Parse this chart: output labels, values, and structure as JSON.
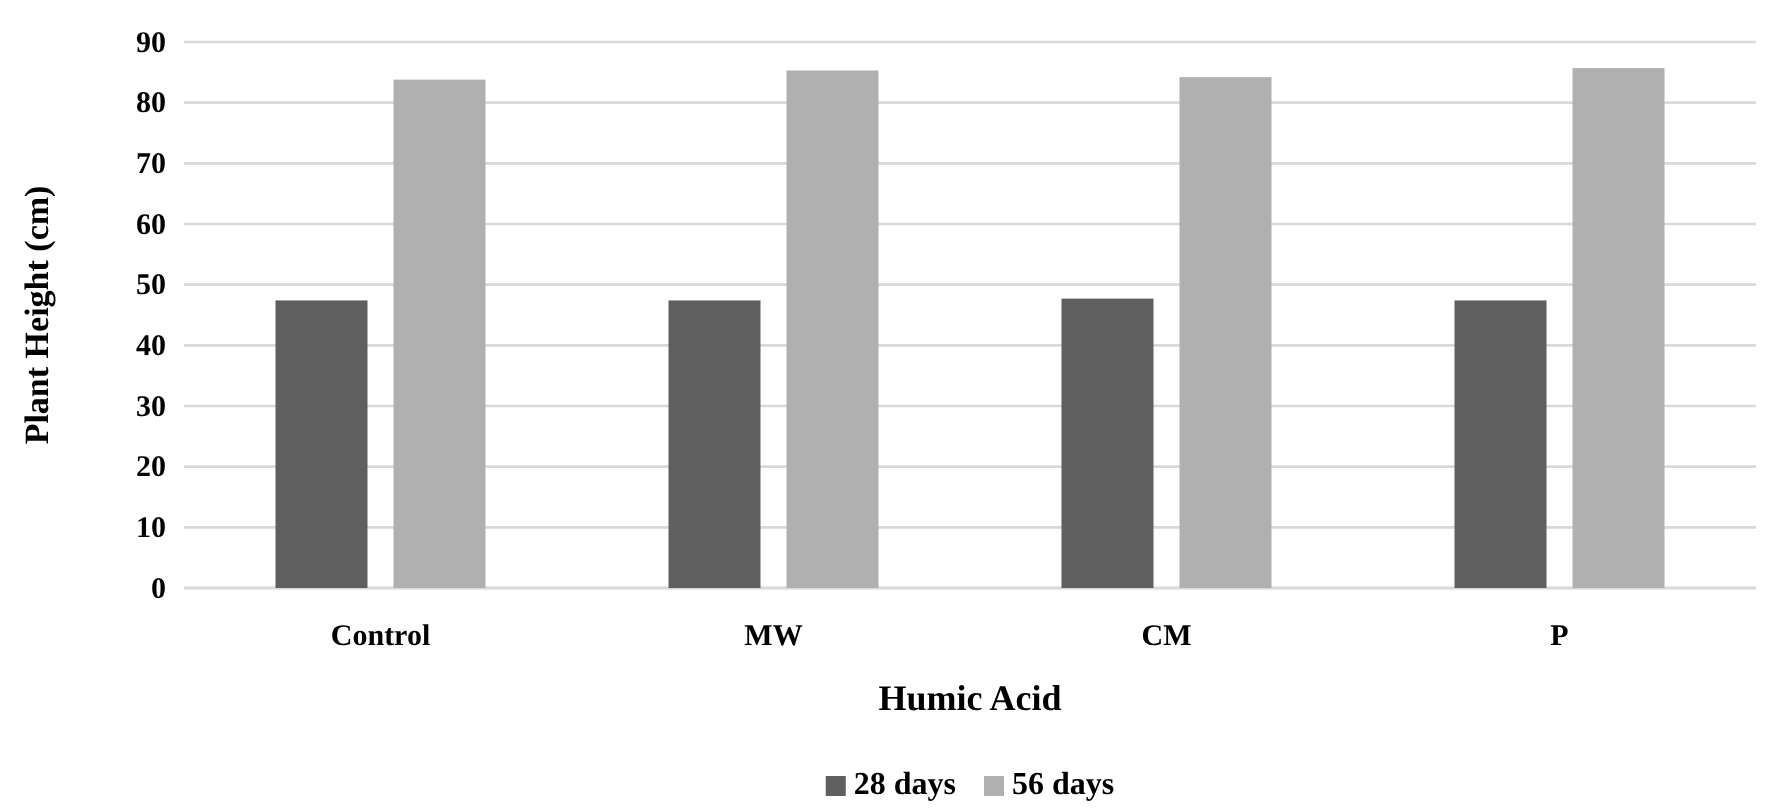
{
  "chart_data": {
    "type": "bar",
    "xlabel": "Humic Acid",
    "ylabel": "Plant Height (cm)",
    "categories": [
      "Control",
      "MW",
      "CM",
      "P"
    ],
    "series": [
      {
        "name": "28 days",
        "color": "#5f5f5f",
        "values": [
          47.4,
          47.4,
          47.7,
          47.4
        ]
      },
      {
        "name": "56 days",
        "color": "#b0b0b0",
        "values": [
          83.8,
          85.3,
          84.2,
          85.7
        ]
      }
    ],
    "ylim": [
      0,
      90
    ],
    "yticks": [
      0,
      10,
      20,
      30,
      40,
      50,
      60,
      70,
      80,
      90
    ],
    "grid": "y",
    "legend": "bottom"
  }
}
